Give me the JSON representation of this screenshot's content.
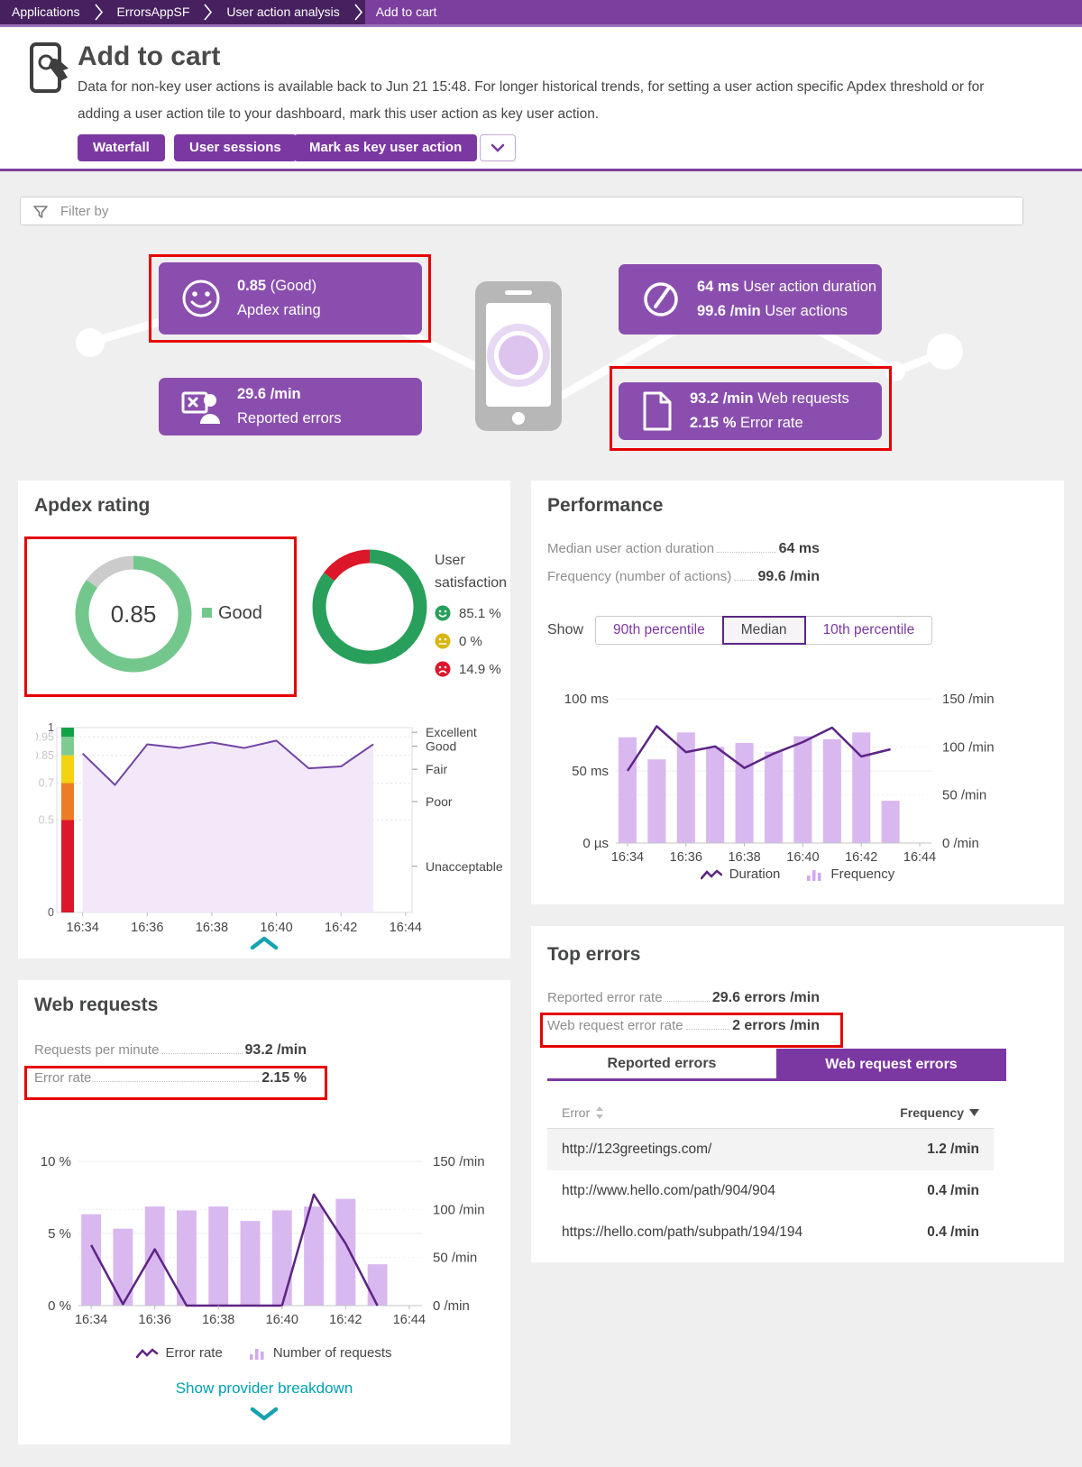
{
  "breadcrumb": {
    "items": [
      "Applications",
      "ErrorsAppSF",
      "User action analysis"
    ],
    "current": "Add to cart"
  },
  "header": {
    "title": "Add to cart",
    "description_line1": "Data for non-key user actions is available back to Jun 21 15:48. For longer historical trends, for setting a user action specific Apdex threshold or for",
    "description_line2": "adding a user action tile to your dashboard, mark this user action as key user action.",
    "buttons": {
      "waterfall": "Waterfall",
      "user_sessions": "User sessions",
      "mark_key": "Mark as key user action"
    }
  },
  "filter": {
    "placeholder": "Filter by"
  },
  "infographic": {
    "apdex_tile": {
      "value": "0.85",
      "suffix": "(Good)",
      "label": "Apdex rating"
    },
    "reported_errors_tile": {
      "value": "29.6 /min",
      "label": "Reported errors"
    },
    "user_actions_tile": {
      "line1_value": "64 ms",
      "line1_label": "User action duration",
      "line2_value": "99.6 /min",
      "line2_label": "User actions"
    },
    "web_requests_tile": {
      "line1_value": "93.2 /min",
      "line1_label": "Web requests",
      "line2_value": "2.15 %",
      "line2_label": "Error rate"
    }
  },
  "apdex_panel": {
    "title": "Apdex rating",
    "donut_center": "0.85",
    "donut_legend": "Good",
    "satisfaction": {
      "title_line1": "User",
      "title_line2": "satisfaction",
      "rows": [
        {
          "name": "satisfied",
          "value": "85.1 %"
        },
        {
          "name": "tolerating",
          "value": "0 %"
        },
        {
          "name": "frustrated",
          "value": "14.9 %"
        }
      ]
    }
  },
  "performance_panel": {
    "title": "Performance",
    "metrics": [
      {
        "label": "Median user action duration",
        "value": "64 ms"
      },
      {
        "label": "Frequency (number of actions)",
        "value": "99.6 /min"
      }
    ],
    "show_label": "Show",
    "segments": [
      "90th percentile",
      "Median",
      "10th percentile"
    ],
    "selected_segment": "Median",
    "legend": [
      "Duration",
      "Frequency"
    ]
  },
  "top_errors_panel": {
    "title": "Top errors",
    "metrics": [
      {
        "label": "Reported error rate",
        "value": "29.6 errors /min"
      },
      {
        "label": "Web request error rate",
        "value": "2 errors /min"
      }
    ],
    "tabs": [
      "Reported errors",
      "Web request errors"
    ],
    "active_tab": "Web request errors",
    "table": {
      "columns": [
        "Error",
        "Frequency"
      ],
      "rows": [
        {
          "error": "http://123greetings.com/",
          "frequency": "1.2 /min"
        },
        {
          "error": "http://www.hello.com/path/904/904",
          "frequency": "0.4 /min"
        },
        {
          "error": "https://hello.com/path/subpath/194/194",
          "frequency": "0.4 /min"
        }
      ]
    }
  },
  "web_requests_panel": {
    "title": "Web requests",
    "metrics": [
      {
        "label": "Requests per minute",
        "value": "93.2 /min"
      },
      {
        "label": "Error rate",
        "value": "2.15 %"
      }
    ],
    "legend": [
      "Error rate",
      "Number of requests"
    ],
    "link_label": "Show provider breakdown"
  },
  "colors": {
    "accent_purple": "#7c38a2",
    "tile_purple": "#8a4fae",
    "breadcrumb_dark": "#46205f",
    "breadcrumb_active": "#7b3f9e",
    "highlight_red": "#e60000",
    "teal": "#17a2b0",
    "link_teal": "#00a1b2",
    "bar_fill": "#d9b8f0",
    "line_purple": "#5c2483",
    "apdex_line": "#7144a5",
    "good_green": "#74c78c",
    "satisfied_green": "#28a05b",
    "tolerating_yellow": "#d9b613",
    "frustrated_red": "#dc172a"
  },
  "chart_data": [
    {
      "id": "apdex-donut",
      "type": "pie",
      "title": "Apdex rating",
      "center_label": "0.85",
      "slices": [
        {
          "label": "Good",
          "value": 85,
          "color": "#74c78c"
        },
        {
          "label": "Remainder",
          "value": 15,
          "color": "#cbcbcb"
        }
      ],
      "legend": [
        {
          "label": "Good",
          "color": "#74c78c"
        }
      ],
      "legend_position": "right"
    },
    {
      "id": "satisfaction-donut",
      "type": "pie",
      "title": "User satisfaction",
      "slices": [
        {
          "label": "Satisfied",
          "value": 85.1,
          "color": "#28a05b"
        },
        {
          "label": "Frustrated",
          "value": 14.9,
          "color": "#dc172a"
        }
      ],
      "legend": [
        {
          "label": "85.1 %",
          "icon": "satisfied-face",
          "color": "#28a05b"
        },
        {
          "label": "0 %",
          "icon": "neutral-face",
          "color": "#d9b613"
        },
        {
          "label": "14.9 %",
          "icon": "frustrated-face",
          "color": "#dc172a"
        }
      ],
      "legend_position": "right"
    },
    {
      "id": "apdex-trend",
      "type": "area",
      "title": "Apdex rating over time",
      "x": [
        "16:34",
        "16:35",
        "16:36",
        "16:37",
        "16:38",
        "16:39",
        "16:40",
        "16:41",
        "16:42",
        "16:43"
      ],
      "values": [
        0.86,
        0.69,
        0.91,
        0.89,
        0.92,
        0.89,
        0.93,
        0.78,
        0.79,
        0.91
      ],
      "ylim": [
        0,
        1
      ],
      "ytick_values": [
        1,
        0.95,
        0.85,
        0.7,
        0.5,
        0
      ],
      "yticks": [
        "1",
        "0.95",
        "0.85",
        "0.7",
        "0.5",
        "0"
      ],
      "xticks": [
        "16:34",
        "16:36",
        "16:38",
        "16:40",
        "16:42",
        "16:44"
      ],
      "threshold_bands": [
        {
          "label": "Excellent",
          "from": 0.95,
          "to": 1,
          "color": "#14a146"
        },
        {
          "label": "Good",
          "from": 0.85,
          "to": 0.95,
          "color": "#7ecb92"
        },
        {
          "label": "Fair",
          "from": 0.7,
          "to": 0.85,
          "color": "#f5d30f"
        },
        {
          "label": "Poor",
          "from": 0.5,
          "to": 0.7,
          "color": "#ec7d26"
        },
        {
          "label": "Unacceptable",
          "from": 0,
          "to": 0.5,
          "color": "#dc172a"
        }
      ],
      "line_color": "#7144a5",
      "fill_color": "#f2e8fa",
      "grid": "dotted"
    },
    {
      "id": "performance-trend",
      "type": "bar+line",
      "title": "Performance over time",
      "x": [
        "16:34",
        "16:35",
        "16:36",
        "16:37",
        "16:38",
        "16:39",
        "16:40",
        "16:41",
        "16:42",
        "16:43"
      ],
      "xticks": [
        "16:34",
        "16:36",
        "16:38",
        "16:40",
        "16:42",
        "16:44"
      ],
      "series": [
        {
          "name": "Duration",
          "type": "line",
          "axis": "left",
          "unit": "ms",
          "axis_max": 100,
          "values": [
            50,
            81,
            63,
            67,
            52,
            62,
            70,
            80,
            60,
            65
          ],
          "color": "#5c2483"
        },
        {
          "name": "Frequency",
          "type": "bar",
          "axis": "right",
          "unit": "/min",
          "axis_max": 150,
          "values": [
            110,
            87,
            115,
            100,
            104,
            95,
            111,
            108,
            115,
            44
          ],
          "color": "#d9b8f0"
        }
      ],
      "left_axis_labels": [
        "100 ms",
        "50 ms",
        "0 µs"
      ],
      "right_axis_labels": [
        "150 /min",
        "100 /min",
        "50 /min",
        "0 /min"
      ]
    },
    {
      "id": "webrequest-trend",
      "type": "bar+line",
      "title": "Web requests over time",
      "x": [
        "16:34",
        "16:35",
        "16:36",
        "16:37",
        "16:38",
        "16:39",
        "16:40",
        "16:41",
        "16:42",
        "16:43"
      ],
      "xticks": [
        "16:34",
        "16:36",
        "16:38",
        "16:40",
        "16:42",
        "16:44"
      ],
      "series": [
        {
          "name": "Error rate",
          "type": "line",
          "axis": "left",
          "unit": "%",
          "axis_max": 10,
          "values": [
            4.2,
            0.1,
            3.9,
            0,
            0,
            0,
            0,
            7.7,
            4.3,
            0
          ],
          "color": "#5c2483"
        },
        {
          "name": "Number of requests",
          "type": "bar",
          "axis": "right",
          "unit": "/min",
          "axis_max": 150,
          "values": [
            95,
            80,
            103,
            99,
            103,
            88,
            99,
            103,
            111,
            43
          ],
          "color": "#d9b8f0"
        }
      ],
      "left_axis_labels": [
        "10 %",
        "5 %",
        "0 %"
      ],
      "right_axis_labels": [
        "150 /min",
        "100 /min",
        "50 /min",
        "0 /min"
      ]
    }
  ]
}
